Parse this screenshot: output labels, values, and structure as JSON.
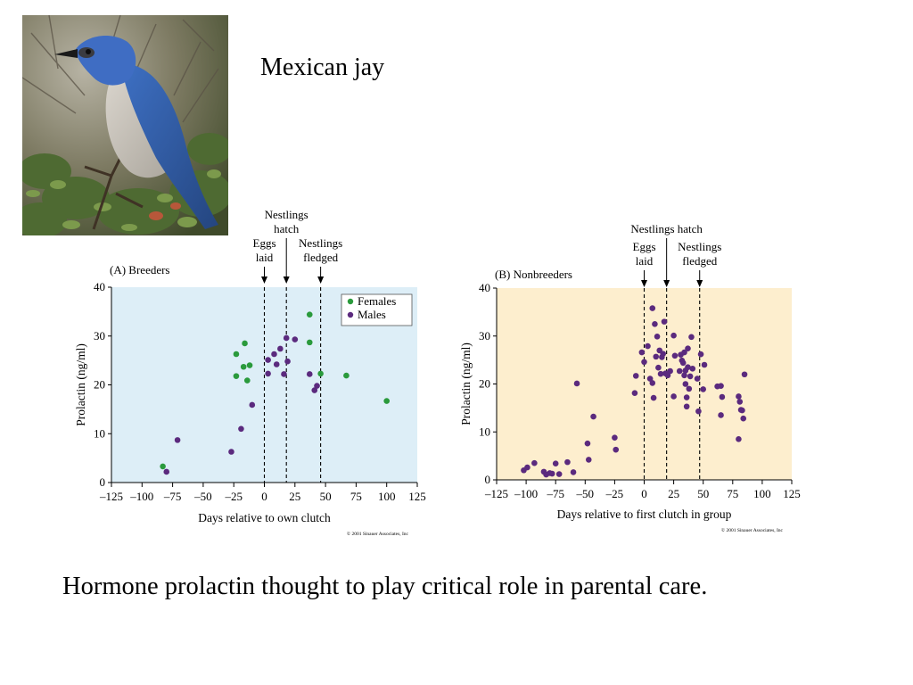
{
  "title": "Mexican jay",
  "caption": "Hormone prolactin thought to play critical role in parental care.",
  "photo": {
    "icon": "mexican-jay-photo"
  },
  "chart_data": [
    {
      "type": "scatter",
      "title": "(A)  Breeders",
      "xlabel": "Days relative to own clutch",
      "ylabel": "Prolactin (ng/ml)",
      "xlim": [
        -125,
        125
      ],
      "ylim": [
        0,
        40
      ],
      "xticks": [
        -125,
        -100,
        -75,
        -50,
        -25,
        0,
        25,
        50,
        75,
        100,
        125
      ],
      "yticks": [
        0,
        10,
        20,
        30,
        40
      ],
      "grid": false,
      "background": "#ddeef7",
      "legend_position": "top-right",
      "copyright": "© 2001 Sinauer Associates, Inc",
      "event_lines": [
        {
          "label": [
            "Eggs",
            "laid"
          ],
          "x": 0
        },
        {
          "label": [
            "Nestlings",
            "hatch"
          ],
          "x": 18
        },
        {
          "label": [
            "Nestlings",
            "fledged"
          ],
          "x": 46
        }
      ],
      "series": [
        {
          "name": "Females",
          "color": "#2a9a3c",
          "x": [
            -83,
            -23,
            -23,
            -17,
            -16,
            -14,
            -12,
            37,
            37,
            46,
            67,
            100
          ],
          "y": [
            3.3,
            26.3,
            21.8,
            23.7,
            28.5,
            20.9,
            24.0,
            34.4,
            28.7,
            22.3,
            21.9,
            16.7
          ]
        },
        {
          "name": "Males",
          "color": "#5b2a7e",
          "x": [
            -80,
            -71,
            -27,
            -19,
            -10,
            3,
            3,
            8,
            10,
            13,
            16,
            18,
            19,
            25,
            37,
            41,
            43
          ],
          "y": [
            2.2,
            8.7,
            6.3,
            11.0,
            15.9,
            25.1,
            22.3,
            26.3,
            24.2,
            27.4,
            22.2,
            29.6,
            24.8,
            29.3,
            22.2,
            18.9,
            19.8
          ]
        }
      ]
    },
    {
      "type": "scatter",
      "title": "(B)  Nonbreeders",
      "xlabel": "Days relative to first clutch in group",
      "ylabel": "Prolactin (ng/ml)",
      "xlim": [
        -125,
        125
      ],
      "ylim": [
        0,
        40
      ],
      "xticks": [
        -125,
        -100,
        -75,
        -50,
        -25,
        0,
        25,
        50,
        75,
        100,
        125
      ],
      "yticks": [
        0,
        10,
        20,
        30,
        40
      ],
      "grid": false,
      "background": "#fdeece",
      "copyright": "© 2001 Sinauer Associates, Inc",
      "event_lines": [
        {
          "label": [
            "Nestlings hatch"
          ],
          "x": 19
        },
        {
          "label": [
            "Eggs",
            "laid"
          ],
          "x": 0
        },
        {
          "label": [
            "Nestlings",
            "fledged"
          ],
          "x": 47
        }
      ],
      "series": [
        {
          "name": "",
          "color": "#5b2a7e",
          "x": [
            -102,
            -99,
            -93,
            -85,
            -83,
            -80,
            -78,
            -75,
            -72,
            -65,
            -60,
            -48,
            -47,
            -43,
            -25,
            -24,
            -57,
            -8,
            -7,
            -2,
            0,
            3,
            5,
            7,
            7,
            8,
            9,
            10,
            11,
            12,
            13,
            14,
            15,
            16,
            17,
            18,
            20,
            22,
            25,
            25,
            26,
            30,
            31,
            32,
            33,
            34,
            34,
            35,
            35,
            36,
            36,
            37,
            37,
            38,
            39,
            40,
            41,
            45,
            46,
            48,
            50,
            51,
            65,
            66,
            65,
            80,
            80,
            81,
            82,
            83,
            84,
            85,
            62
          ],
          "y": [
            2.0,
            2.6,
            3.5,
            1.7,
            1.1,
            1.4,
            1.3,
            3.4,
            1.2,
            3.7,
            1.6,
            7.6,
            4.2,
            13.2,
            8.8,
            6.3,
            20.1,
            18.1,
            21.7,
            26.6,
            24.6,
            27.9,
            21.1,
            20.2,
            35.8,
            17.1,
            32.5,
            25.7,
            29.9,
            23.4,
            27.0,
            22.1,
            25.6,
            26.3,
            33.0,
            22.2,
            21.8,
            22.7,
            30.1,
            17.4,
            25.9,
            22.7,
            26.1,
            24.9,
            24.4,
            21.8,
            26.6,
            22.8,
            20.0,
            17.2,
            15.3,
            23.5,
            27.4,
            19.0,
            21.6,
            29.8,
            23.2,
            21.1,
            14.3,
            26.2,
            18.9,
            24.0,
            19.6,
            17.3,
            13.5,
            8.5,
            17.4,
            16.3,
            14.6,
            14.5,
            12.8,
            22.0,
            19.5
          ]
        }
      ]
    }
  ]
}
